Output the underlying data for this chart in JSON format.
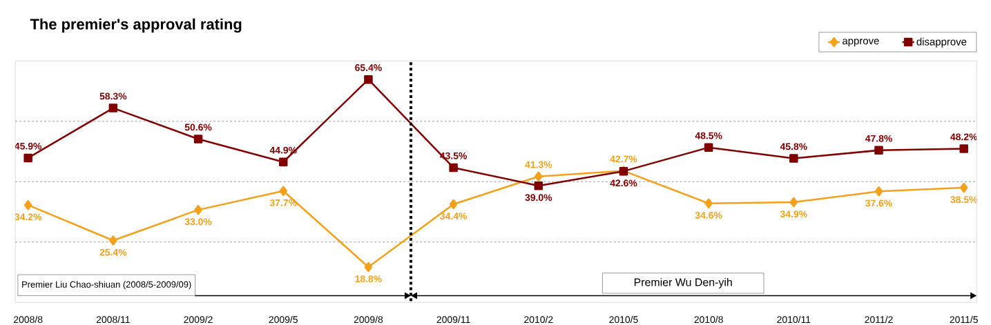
{
  "chart_data": {
    "type": "line",
    "title": "The premier's approval rating",
    "categories": [
      "2008/8",
      "2008/11",
      "2009/2",
      "2009/5",
      "2009/8",
      "2009/11",
      "2010/2",
      "2010/5",
      "2010/8",
      "2010/11",
      "2011/2",
      "2011/5"
    ],
    "series": [
      {
        "name": "approve",
        "color": "#f5a01a",
        "marker": "diamond",
        "values": [
          34.2,
          25.4,
          33.0,
          37.7,
          18.8,
          34.4,
          41.3,
          42.7,
          34.6,
          34.9,
          37.6,
          38.5
        ],
        "value_labels": [
          "34.2%",
          "25.4%",
          "33.0%",
          "37.7%",
          "18.8%",
          "34.4%",
          "41.3%",
          "42.7%",
          "34.6%",
          "34.9%",
          "37.6%",
          "38.5%"
        ]
      },
      {
        "name": "disapprove",
        "color": "#800000",
        "marker": "square",
        "values": [
          45.9,
          58.3,
          50.6,
          44.9,
          65.4,
          43.5,
          39.0,
          42.6,
          48.5,
          45.8,
          47.8,
          48.2
        ],
        "value_labels": [
          "45.9%",
          "58.3%",
          "50.6%",
          "44.9%",
          "65.4%",
          "43.5%",
          "39.0%",
          "42.6%",
          "48.5%",
          "45.8%",
          "47.8%",
          "48.2%"
        ]
      }
    ],
    "ylim": [
      10,
      70
    ],
    "yticks": [
      {
        "value": 25,
        "label": null
      },
      {
        "value": 40,
        "label": null
      },
      {
        "value": 55,
        "label": null
      }
    ],
    "tick_labels": "x",
    "grid": "y",
    "legend": "top right",
    "annotations": [
      "Premier Liu Chao-shiuan (2008/5-2009/09)",
      "Premier Wu Den-yih"
    ]
  }
}
